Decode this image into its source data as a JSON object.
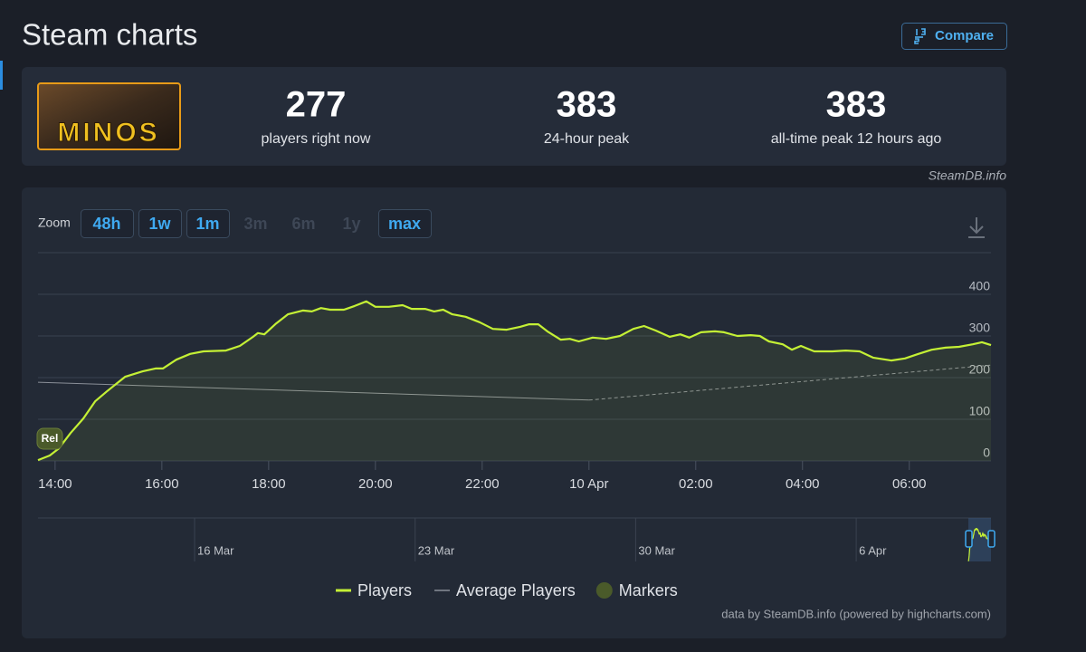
{
  "header": {
    "title": "Steam charts",
    "compare": "Compare"
  },
  "game": {
    "logo_text": "MINOS"
  },
  "stats": [
    {
      "value": 277,
      "label": "players right now"
    },
    {
      "value": 383,
      "label": "24-hour peak"
    },
    {
      "value": 383,
      "label": "all-time peak 12 hours ago"
    }
  ],
  "source": "SteamDB.info",
  "chart_data": {
    "type": "line",
    "zoom_label": "Zoom",
    "zoom_buttons": [
      "48h",
      "1w",
      "1m",
      "3m",
      "6m",
      "1y",
      "max"
    ],
    "zoom_enabled": [
      true,
      true,
      true,
      false,
      false,
      false,
      true
    ],
    "xlim": [
      13.68,
      31.53
    ],
    "xticks": [
      {
        "value": 14,
        "label": "14:00"
      },
      {
        "value": 16,
        "label": "16:00"
      },
      {
        "value": 18,
        "label": "18:00"
      },
      {
        "value": 20,
        "label": "20:00"
      },
      {
        "value": 22,
        "label": "22:00"
      },
      {
        "value": 24,
        "label": "10 Apr"
      },
      {
        "value": 26,
        "label": "02:00"
      },
      {
        "value": 28,
        "label": "04:00"
      },
      {
        "value": 30,
        "label": "06:00"
      }
    ],
    "ylim": [
      0,
      500
    ],
    "yticks": [
      0,
      100,
      200,
      300,
      400
    ],
    "grid": true,
    "series": [
      {
        "name": "Players",
        "color": "#c4f035",
        "x": [
          13.68,
          13.9,
          14.07,
          14.29,
          14.53,
          14.75,
          14.97,
          15.31,
          15.64,
          15.88,
          16.02,
          16.27,
          16.53,
          16.78,
          17.2,
          17.46,
          17.71,
          17.8,
          17.92,
          18.14,
          18.36,
          18.64,
          18.81,
          18.98,
          19.15,
          19.41,
          19.61,
          19.83,
          20.0,
          20.25,
          20.51,
          20.68,
          20.93,
          21.1,
          21.27,
          21.44,
          21.69,
          21.95,
          22.2,
          22.46,
          22.71,
          22.88,
          23.05,
          23.22,
          23.47,
          23.64,
          23.81,
          24.07,
          24.32,
          24.58,
          24.83,
          25.03,
          25.25,
          25.51,
          25.71,
          25.88,
          26.1,
          26.36,
          26.53,
          26.78,
          27.03,
          27.2,
          27.37,
          27.63,
          27.8,
          27.97,
          28.22,
          28.56,
          28.81,
          29.07,
          29.32,
          29.66,
          29.92,
          30.17,
          30.42,
          30.68,
          30.93,
          31.19,
          31.36,
          31.53
        ],
        "values": [
          2,
          13,
          30,
          67,
          102,
          143,
          167,
          202,
          215,
          222,
          222,
          243,
          257,
          263,
          265,
          276,
          298,
          307,
          304,
          330,
          352,
          361,
          359,
          367,
          363,
          363,
          372,
          383,
          370,
          370,
          374,
          365,
          365,
          359,
          363,
          352,
          346,
          333,
          317,
          315,
          322,
          328,
          328,
          311,
          291,
          293,
          287,
          296,
          293,
          300,
          317,
          324,
          313,
          298,
          304,
          296,
          309,
          311,
          309,
          300,
          302,
          300,
          287,
          280,
          267,
          276,
          263,
          263,
          265,
          263,
          248,
          241,
          246,
          257,
          267,
          272,
          274,
          280,
          285,
          278
        ]
      },
      {
        "name": "Average Players",
        "color": "#8a8f98",
        "dashed_after_index": 1,
        "x": [
          13.68,
          24.0,
          31.53
        ],
        "values": [
          189,
          146,
          230
        ]
      }
    ],
    "markers": {
      "name": "Markers",
      "color": "#4a5a2a",
      "points": [
        {
          "x": 13.9,
          "label": "Rel"
        }
      ]
    },
    "navigator": {
      "ticks": [
        "16 Mar",
        "23 Mar",
        "30 Mar",
        "6 Apr"
      ]
    },
    "credits": "data by SteamDB.info (powered by highcharts.com)"
  }
}
